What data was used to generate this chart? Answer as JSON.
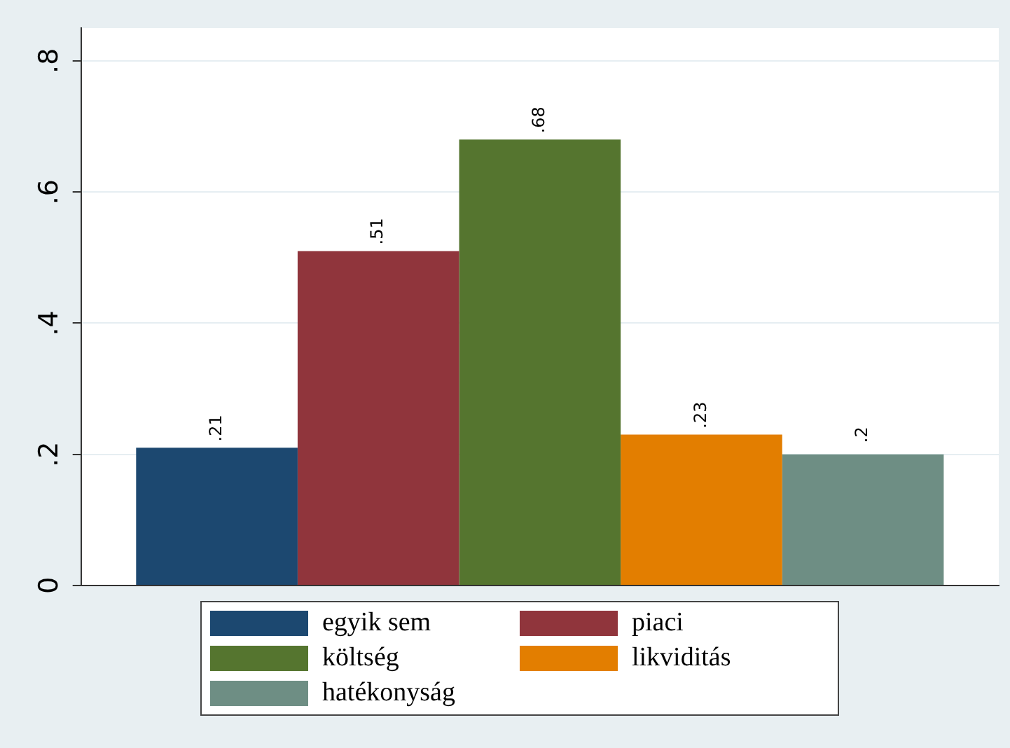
{
  "chart_data": {
    "type": "bar",
    "categories": [
      null
    ],
    "series": [
      {
        "name": "egyik sem",
        "color": "#1c4870",
        "values": [
          0.21
        ],
        "value_labels": [
          ".21"
        ]
      },
      {
        "name": "piaci",
        "color": "#90353c",
        "values": [
          0.51
        ],
        "value_labels": [
          ".51"
        ]
      },
      {
        "name": "költség",
        "color": "#55752f",
        "values": [
          0.68
        ],
        "value_labels": [
          ".68"
        ]
      },
      {
        "name": "likviditás",
        "color": "#e37e00",
        "values": [
          0.23
        ],
        "value_labels": [
          ".23"
        ]
      },
      {
        "name": "hatékonyság",
        "color": "#6e8e84",
        "values": [
          0.2
        ],
        "value_labels": [
          ".2"
        ]
      }
    ],
    "ylim": [
      0,
      0.85
    ],
    "yticks": [
      0,
      {
        "value": 0.2,
        "label": ".2"
      },
      {
        "value": 0.4,
        "label": ".4"
      },
      {
        "value": 0.6,
        "label": ".6"
      },
      {
        "value": 0.8,
        "label": ".8"
      }
    ],
    "grid": "y",
    "legend": "bottom"
  }
}
